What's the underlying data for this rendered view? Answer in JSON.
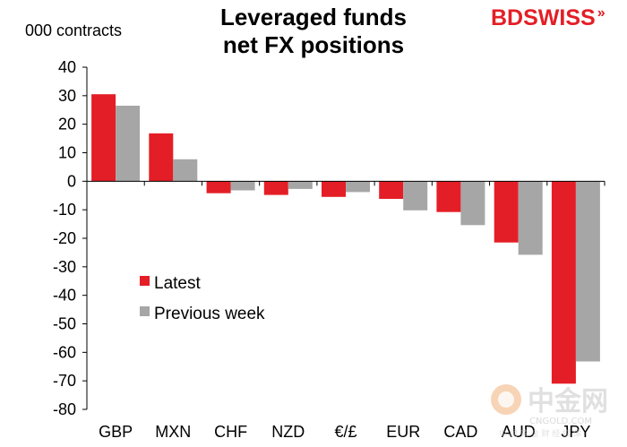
{
  "chart_data": {
    "type": "bar",
    "title_line1": "Leveraged funds",
    "title_line2": "net FX positions",
    "ylabel": "000 contracts",
    "categories": [
      "GBP",
      "MXN",
      "CHF",
      "NZD",
      "€/£",
      "EUR",
      "CAD",
      "AUD",
      "JPY"
    ],
    "series": [
      {
        "name": "Latest",
        "color": "#e41e26",
        "values": [
          30.5,
          16.8,
          -4.2,
          -4.8,
          -5.5,
          -6.2,
          -10.8,
          -21.5,
          -71.0
        ]
      },
      {
        "name": "Previous week",
        "color": "#a6a6a6",
        "values": [
          26.5,
          7.7,
          -3.2,
          -2.7,
          -3.8,
          -10.2,
          -15.4,
          -25.8,
          -63.2
        ]
      }
    ],
    "ylim": [
      -80,
      40
    ],
    "yticks": [
      40,
      30,
      20,
      10,
      0,
      -10,
      -20,
      -30,
      -40,
      -50,
      -60,
      -70,
      -80
    ],
    "grid": false,
    "legend_position": "middle-left"
  },
  "brand": {
    "logo_part1": "BD",
    "logo_part2": "SWISS",
    "logo_mark": "»"
  },
  "watermark": {
    "cn_name": "中金网",
    "domain": "CNGOLD.COM",
    "tagline": "中 国 黄 金 财 经 媒 体"
  }
}
